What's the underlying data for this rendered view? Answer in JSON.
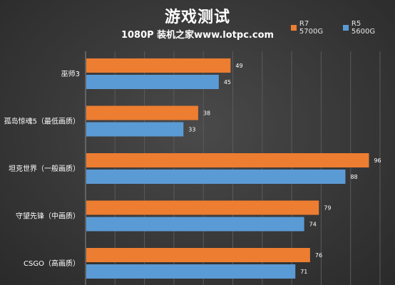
{
  "header": {
    "title": "游戏测试",
    "subtitle": "1080P  装机之家www.lotpc.com"
  },
  "colors": {
    "r7": "#ed7d31",
    "r5": "#5b9bd5",
    "grid": "#5a5a5a",
    "axis": "#8a8a8a"
  },
  "chart_data": {
    "type": "bar",
    "orientation": "horizontal",
    "title": "游戏测试",
    "subtitle": "1080P  装机之家www.lotpc.com",
    "categories": [
      "巫师3",
      "孤岛惊魂5（最低画质）",
      "坦克世界（一般画质）",
      "守望先锋（中画质）",
      "CSGO（高画质）"
    ],
    "series": [
      {
        "name": "R7 5700G",
        "color": "#ed7d31",
        "values": [
          49,
          38,
          96,
          79,
          76
        ]
      },
      {
        "name": "R5 5600G",
        "color": "#5b9bd5",
        "values": [
          45,
          33,
          88,
          74,
          71
        ]
      }
    ],
    "xlim": [
      0,
      100
    ],
    "grid": true,
    "legend": "top-right"
  }
}
